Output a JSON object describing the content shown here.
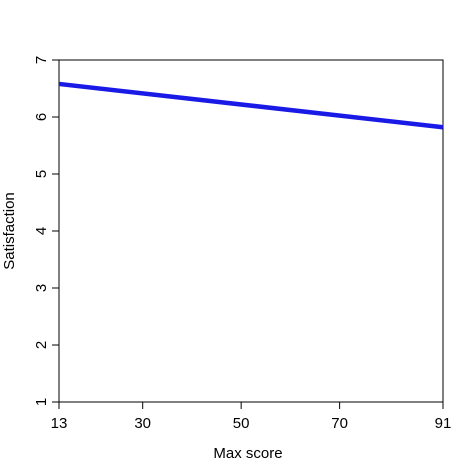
{
  "chart_data": {
    "type": "line",
    "x_label": "Max score",
    "y_label": "Satisfaction",
    "series": [
      {
        "color": "#1a1ae6",
        "x": [
          13,
          91
        ],
        "values": [
          6.58,
          5.82
        ]
      }
    ],
    "xlim": [
      13,
      91
    ],
    "xticks": [
      13,
      30,
      50,
      70,
      91
    ],
    "ylim": [
      1,
      7
    ],
    "yticks": [
      1,
      2,
      3,
      4,
      5,
      6,
      7
    ]
  }
}
